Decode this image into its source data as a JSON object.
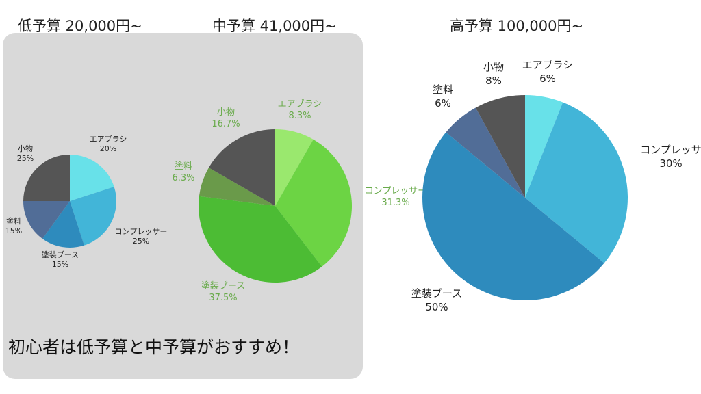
{
  "recommendation": "初心者は低予算と中予算がおすすめ！",
  "colors": {
    "panel_bg": "#d9d9d9",
    "blue_palette": [
      "#68e1e9",
      "#42b5d8",
      "#2e8bbd",
      "#516d97",
      "#555555"
    ],
    "green_palette": [
      "#9ae86e",
      "#6cd444",
      "#4cbc34",
      "#6a9a4a",
      "#555555"
    ],
    "green_label": "#6aab4c",
    "dark_label": "#222222"
  },
  "chart_data": [
    {
      "type": "pie",
      "title": "低予算 20,000円~",
      "categories": [
        "エアブラシ",
        "コンプレッサー",
        "塗装ブース",
        "塗料",
        "小物"
      ],
      "values": [
        20,
        25,
        15,
        15,
        25
      ],
      "labels": [
        "20%",
        "25%",
        "15%",
        "15%",
        "25%"
      ],
      "start_angle_deg": 0,
      "highlighted": true
    },
    {
      "type": "pie",
      "title": "中予算 41,000円~",
      "categories": [
        "エアブラシ",
        "コンプレッサー",
        "塗装ブース",
        "塗料",
        "小物"
      ],
      "values": [
        8.3,
        31.3,
        37.5,
        6.3,
        16.7
      ],
      "labels": [
        "8.3%",
        "31.3%",
        "37.5%",
        "6.3%",
        "16.7%"
      ],
      "start_angle_deg": 0,
      "highlighted": true
    },
    {
      "type": "pie",
      "title": "高予算 100,000円~",
      "categories": [
        "エアブラシ",
        "コンプレッサー",
        "塗装ブース",
        "塗料",
        "小物"
      ],
      "label_texts": [
        "エアブラシ",
        "コンプレッサ",
        "塗装ブース",
        "塗料",
        "小物"
      ],
      "values": [
        6,
        30,
        50,
        6,
        8
      ],
      "labels": [
        "6%",
        "30%",
        "50%",
        "6%",
        "8%"
      ],
      "start_angle_deg": 0,
      "highlighted": false
    }
  ]
}
